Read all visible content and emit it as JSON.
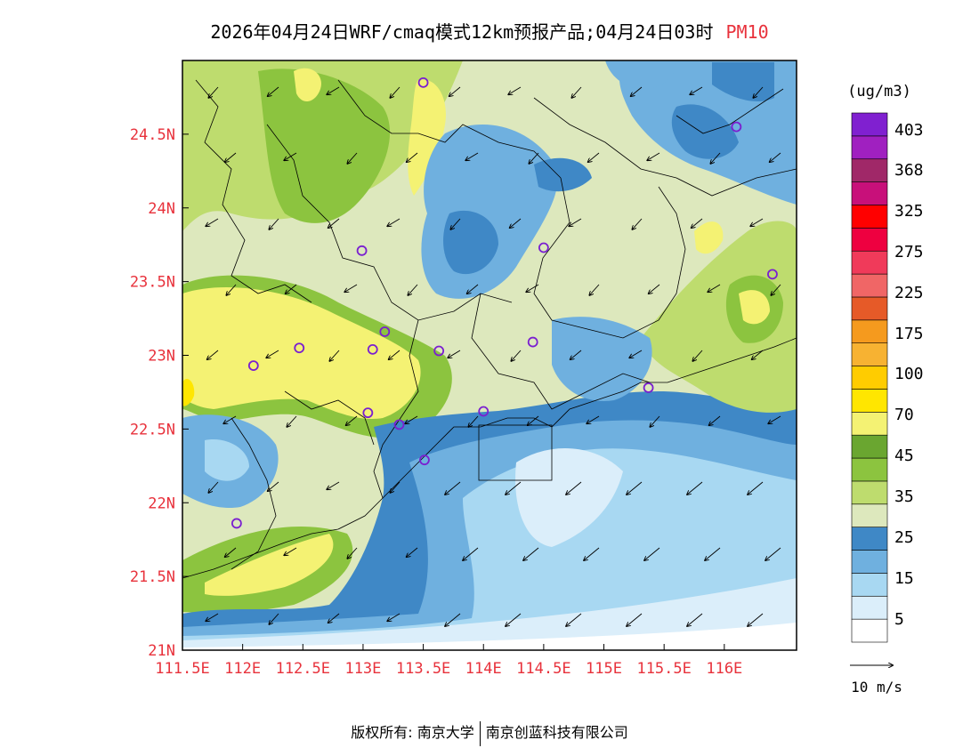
{
  "title": {
    "text": "2026年04月24日WRF/cmaq模式12km预报产品;04月24日03时",
    "pollutant": "PM10",
    "pollutant_color": "#e8323c"
  },
  "map": {
    "lat_labels": [
      "21N",
      "21.5N",
      "22N",
      "22.5N",
      "23N",
      "23.5N",
      "24N",
      "24.5N"
    ],
    "lat_values": [
      21,
      21.5,
      22,
      22.5,
      23,
      23.5,
      24,
      24.5
    ],
    "lon_labels": [
      "111.5E",
      "112E",
      "112.5E",
      "113E",
      "113.5E",
      "114E",
      "114.5E",
      "115E",
      "115.5E",
      "116E"
    ],
    "lon_values": [
      111.5,
      112,
      112.5,
      113,
      113.5,
      114,
      114.5,
      115,
      115.5,
      116
    ],
    "lat_range": [
      21,
      25
    ],
    "lon_range": [
      111.5,
      116.6
    ],
    "label_color": "#e8323c",
    "stations": [
      {
        "lon": 113.5,
        "lat": 24.85
      },
      {
        "lon": 116.1,
        "lat": 24.55
      },
      {
        "lon": 112.99,
        "lat": 23.71
      },
      {
        "lon": 114.5,
        "lat": 23.73
      },
      {
        "lon": 116.4,
        "lat": 23.55
      },
      {
        "lon": 113.18,
        "lat": 23.16
      },
      {
        "lon": 112.47,
        "lat": 23.05
      },
      {
        "lon": 113.08,
        "lat": 23.04
      },
      {
        "lon": 113.63,
        "lat": 23.03
      },
      {
        "lon": 114.41,
        "lat": 23.09
      },
      {
        "lon": 112.09,
        "lat": 22.93
      },
      {
        "lon": 115.37,
        "lat": 22.78
      },
      {
        "lon": 114.0,
        "lat": 22.62
      },
      {
        "lon": 113.04,
        "lat": 22.61
      },
      {
        "lon": 113.3,
        "lat": 22.53
      },
      {
        "lon": 113.51,
        "lat": 22.29
      },
      {
        "lon": 111.95,
        "lat": 21.86
      }
    ]
  },
  "legend": {
    "unit": "(ug/m3)",
    "labels": [
      "5",
      "15",
      "25",
      "35",
      "45",
      "70",
      "100",
      "175",
      "225",
      "275",
      "325",
      "368",
      "403"
    ],
    "colors": [
      "#ffffff",
      "#dbeefa",
      "#a8d8f2",
      "#6fb0df",
      "#3f88c6",
      "#dde8bd",
      "#bedc6e",
      "#8cc43f",
      "#6aa630",
      "#f4f273",
      "#ffe600",
      "#ffcc00",
      "#f7b232",
      "#f59a1e",
      "#e65a28",
      "#f06666",
      "#f03a5a",
      "#ee0040",
      "#ff0000",
      "#c8107a",
      "#a02868",
      "#a020c0",
      "#8020d0"
    ]
  },
  "wind_key": {
    "label": "10 m/s"
  },
  "footer": {
    "copyright": "版权所有: 南京大学",
    "company": "南京创蓝科技有限公司"
  }
}
